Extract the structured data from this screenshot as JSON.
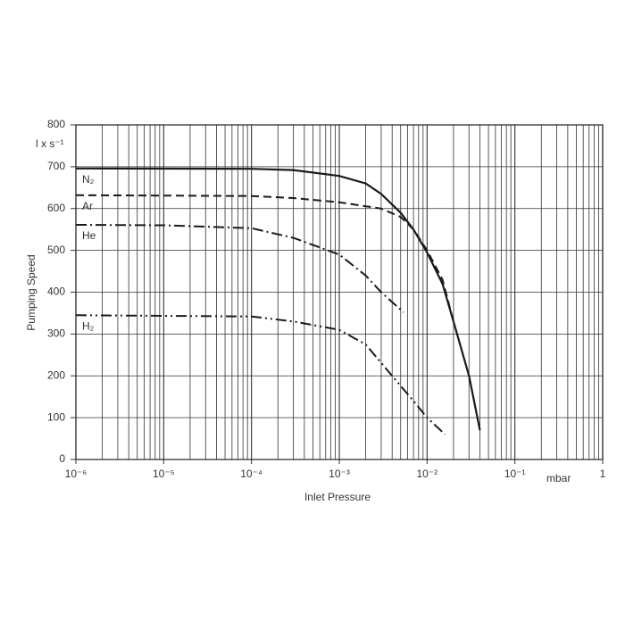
{
  "chart_data": {
    "type": "line",
    "xlabel": "Inlet Pressure",
    "ylabel": "Pumping Speed",
    "x_unit": "mbar",
    "y_unit": "l x s⁻¹",
    "xscale": "log",
    "xlim": [
      1e-06,
      1
    ],
    "ylim": [
      0,
      800
    ],
    "xticks": [
      {
        "value": 1e-06,
        "label": "10⁻⁶"
      },
      {
        "value": 1e-05,
        "label": "10⁻⁵"
      },
      {
        "value": 0.0001,
        "label": "10⁻⁴"
      },
      {
        "value": 0.001,
        "label": "10⁻³"
      },
      {
        "value": 0.01,
        "label": "10⁻²"
      },
      {
        "value": 0.1,
        "label": "10⁻¹"
      },
      1
    ],
    "yticks": [
      0,
      100,
      200,
      300,
      400,
      500,
      600,
      700,
      800
    ],
    "grid": true,
    "minor_grid": true,
    "series": [
      {
        "name": "N₂",
        "color": "#1a1a1a",
        "style": "solid",
        "x": [
          1e-06,
          0.0001,
          0.0003,
          0.001,
          0.002,
          0.003,
          0.005,
          0.007,
          0.01,
          0.015,
          0.02,
          0.03,
          0.04
        ],
        "values": [
          696,
          695,
          692,
          678,
          660,
          635,
          590,
          550,
          495,
          420,
          330,
          200,
          70
        ]
      },
      {
        "name": "Ar",
        "color": "#1a1a1a",
        "style": "dashed",
        "x": [
          1e-06,
          0.0001,
          0.0003,
          0.001,
          0.003,
          0.005,
          0.007,
          0.01,
          0.015,
          0.02
        ],
        "values": [
          632,
          630,
          625,
          615,
          600,
          580,
          550,
          500,
          430,
          330
        ]
      },
      {
        "name": "He",
        "color": "#1a1a1a",
        "style": "dash-dot",
        "x": [
          1e-06,
          1e-05,
          0.0001,
          0.0003,
          0.001,
          0.002,
          0.003,
          0.0054
        ],
        "values": [
          561,
          560,
          553,
          530,
          490,
          440,
          400,
          352
        ]
      },
      {
        "name": "H₂",
        "color": "#1a1a1a",
        "style": "dash-dot-dot",
        "x": [
          1e-06,
          0.0001,
          0.0003,
          0.001,
          0.002,
          0.004,
          0.007,
          0.01,
          0.016
        ],
        "values": [
          345,
          342,
          330,
          310,
          275,
          200,
          140,
          100,
          60
        ]
      }
    ]
  }
}
